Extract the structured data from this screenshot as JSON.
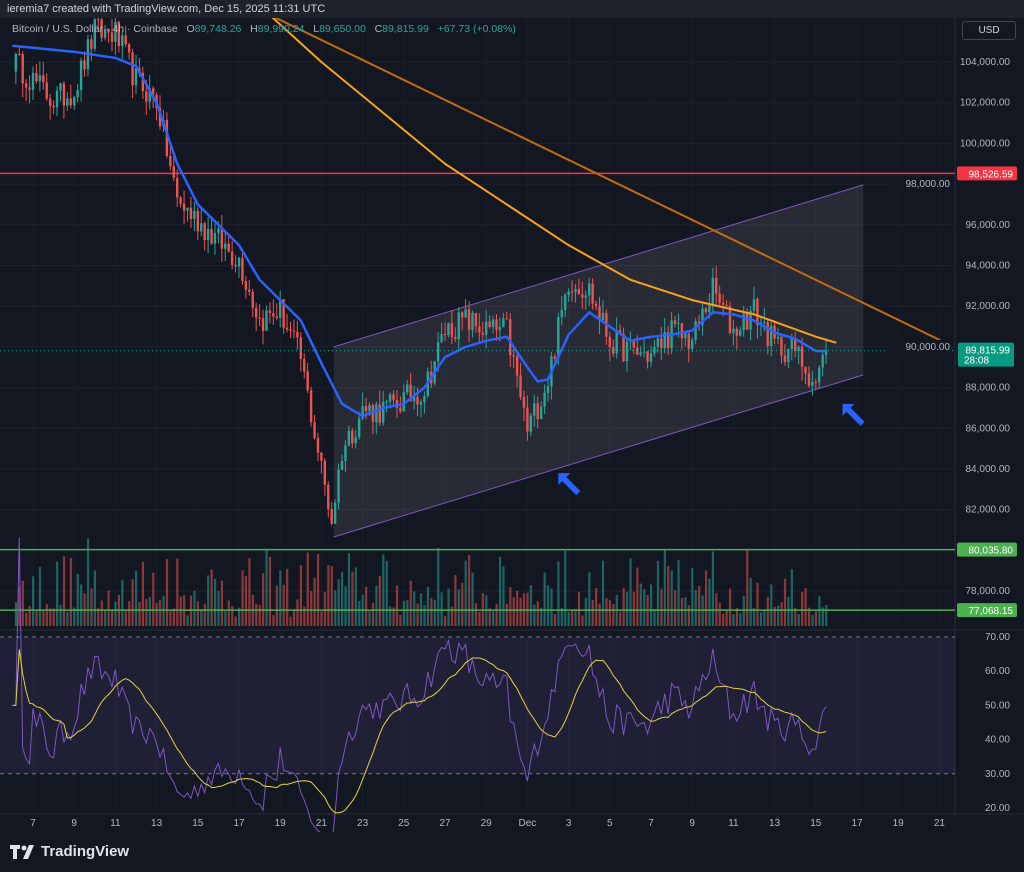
{
  "header": {
    "attribution": "ieremia7 created with TradingView.com, Dec 15, 2025 11:31 UTC"
  },
  "legend": {
    "symbol": "Bitcoin / U.S. Dollar · 4h · Coinbase",
    "open_label": "O",
    "open": "89,748.26",
    "high_label": "H",
    "high": "89,990.24",
    "low_label": "L",
    "low": "89,650.00",
    "close_label": "C",
    "close": "89,815.99",
    "change": "+67.73 (+0.08%)"
  },
  "currency_button": "USD",
  "footer": {
    "brand": "TradingView",
    "logo_icon": "tradingview-logo-icon"
  },
  "colors": {
    "up": "#26a69a",
    "down": "#ef5350",
    "ema": "#2962ff",
    "ma": "#f7a21b",
    "trendline": "#c46a14",
    "channel": "#7e57c2",
    "resistance": "#f23645",
    "support": "#4caf50",
    "rsi": "#7e57c2",
    "rsi_ma": "#e6d33c"
  },
  "chart_data": {
    "type": "candlestick",
    "timeframe": "4h",
    "price_axis": {
      "ticks": [
        104000,
        102000,
        100000,
        98000,
        96000,
        94000,
        92000,
        90000,
        88000,
        86000,
        84000,
        82000,
        78000
      ],
      "tick_labels": [
        "104,000.00",
        "102,000.00",
        "100,000.00",
        "98,000.00",
        "96,000.00",
        "94,000.00",
        "92,000.00",
        "90,000.00",
        "88,000.00",
        "86,000.00",
        "84,000.00",
        "82,000.00",
        "78,000.00"
      ]
    },
    "time_axis": {
      "tick_labels": [
        "7",
        "9",
        "11",
        "13",
        "15",
        "17",
        "19",
        "21",
        "23",
        "25",
        "27",
        "29",
        "Dec",
        "3",
        "5",
        "7",
        "9",
        "11",
        "13",
        "15",
        "17",
        "19",
        "21"
      ],
      "tick_days": [
        0,
        2,
        4,
        6,
        8,
        10,
        12,
        14,
        16,
        18,
        20,
        22,
        24,
        26,
        28,
        30,
        32,
        34,
        36,
        38,
        40,
        42,
        44
      ],
      "day0": "Nov 7, 2025"
    },
    "close_path": [
      [
        -1,
        104100
      ],
      [
        0,
        103100
      ],
      [
        1,
        102100
      ],
      [
        2,
        102600
      ],
      [
        3,
        105500
      ],
      [
        4,
        105400
      ],
      [
        5,
        103100
      ],
      [
        6,
        102100
      ],
      [
        7,
        97200
      ],
      [
        8,
        96200
      ],
      [
        9,
        95200
      ],
      [
        10,
        94300
      ],
      [
        11,
        91300
      ],
      [
        12,
        91800
      ],
      [
        13,
        89400
      ],
      [
        14,
        84000
      ],
      [
        14.5,
        81500
      ],
      [
        15,
        84900
      ],
      [
        16,
        86900
      ],
      [
        17,
        86900
      ],
      [
        18,
        87400
      ],
      [
        19,
        87900
      ],
      [
        20,
        90800
      ],
      [
        21,
        91300
      ],
      [
        22,
        90800
      ],
      [
        23,
        90800
      ],
      [
        24,
        85900
      ],
      [
        25,
        88400
      ],
      [
        26,
        93300
      ],
      [
        27,
        92800
      ],
      [
        28,
        90300
      ],
      [
        29,
        89800
      ],
      [
        30,
        89600
      ],
      [
        31,
        90800
      ],
      [
        32,
        90300
      ],
      [
        33,
        92800
      ],
      [
        34,
        90800
      ],
      [
        35,
        91800
      ],
      [
        36,
        90100
      ],
      [
        37,
        89800
      ],
      [
        38,
        88200
      ],
      [
        38.5,
        89816
      ]
    ],
    "ema_line": [
      [
        -1,
        104800
      ],
      [
        2,
        104500
      ],
      [
        4,
        104200
      ],
      [
        5,
        103800
      ],
      [
        6,
        102000
      ],
      [
        7,
        99000
      ],
      [
        8,
        97000
      ],
      [
        10,
        95000
      ],
      [
        11,
        93300
      ],
      [
        12,
        92300
      ],
      [
        13,
        91300
      ],
      [
        14,
        89200
      ],
      [
        15,
        87200
      ],
      [
        16,
        86600
      ],
      [
        17,
        87000
      ],
      [
        18,
        87200
      ],
      [
        19,
        88000
      ],
      [
        20,
        89500
      ],
      [
        21,
        90000
      ],
      [
        22,
        90300
      ],
      [
        23,
        90500
      ],
      [
        24,
        89000
      ],
      [
        24.5,
        88300
      ],
      [
        25,
        88400
      ],
      [
        26,
        90600
      ],
      [
        27,
        91700
      ],
      [
        28,
        91000
      ],
      [
        29,
        90300
      ],
      [
        30,
        90500
      ],
      [
        31,
        90600
      ],
      [
        32,
        90800
      ],
      [
        33,
        91700
      ],
      [
        34,
        91600
      ],
      [
        35,
        91300
      ],
      [
        36,
        90700
      ],
      [
        37,
        90400
      ],
      [
        38,
        89800
      ],
      [
        38.5,
        89800
      ]
    ],
    "ma_line": [
      [
        11.5,
        106300
      ],
      [
        14,
        104000
      ],
      [
        17,
        101500
      ],
      [
        20,
        99000
      ],
      [
        23,
        97000
      ],
      [
        26,
        95000
      ],
      [
        29,
        93300
      ],
      [
        32,
        92300
      ],
      [
        35,
        91600
      ],
      [
        38,
        90500
      ],
      [
        39,
        90200
      ]
    ],
    "trendline": {
      "start": [
        11.5,
        106310
      ],
      "end": [
        44.5,
        90100
      ]
    },
    "channel": {
      "upper": [
        [
          14.6,
          90000
        ],
        [
          40.3,
          97960
        ]
      ],
      "lower": [
        [
          14.6,
          80660
        ],
        [
          40.3,
          88620
        ]
      ]
    },
    "horizontal_levels": [
      {
        "price": 98526.59,
        "label": "98,526.59",
        "kind": "resistance"
      },
      {
        "price": 80035.8,
        "label": "80,035.80",
        "kind": "support"
      },
      {
        "price": 77068.15,
        "label": "77,068.15",
        "kind": "support"
      }
    ],
    "last_price": {
      "label": "89,815.99",
      "countdown": "28:08"
    },
    "annotations": [
      {
        "type": "arrow",
        "day": 25.5,
        "price": 83800
      },
      {
        "type": "arrow",
        "day": 39.3,
        "price": 87200
      }
    ],
    "rsi": {
      "ticks": [
        70,
        60,
        50,
        40,
        30,
        20
      ],
      "tick_labels": [
        "70.00",
        "60.00",
        "50.00",
        "40.00",
        "30.00",
        "20.00"
      ],
      "band": [
        30,
        70
      ],
      "ylim": [
        20,
        70
      ]
    }
  }
}
